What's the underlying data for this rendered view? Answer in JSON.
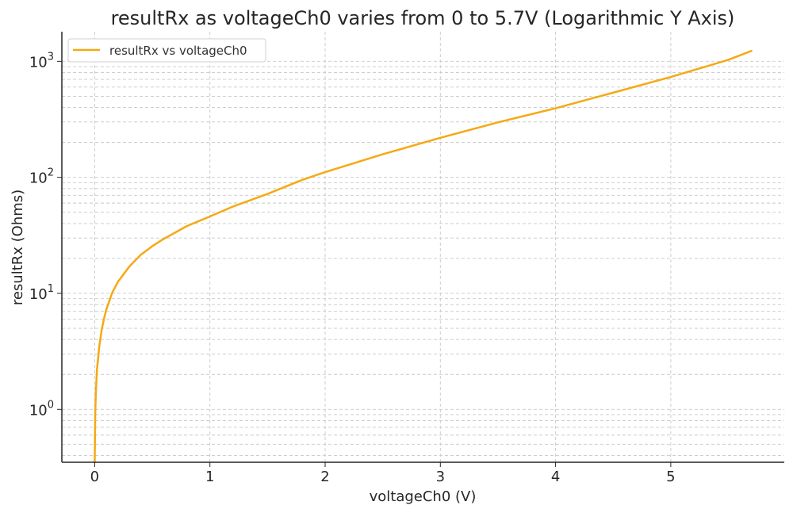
{
  "chart_data": {
    "type": "line",
    "title": "resultRx as voltageCh0 varies from 0 to 5.7V (Logarithmic Y Axis)",
    "xlabel": "voltageCh0 (V)",
    "ylabel": "resultRx (Ohms)",
    "x_ticks": [
      0,
      1,
      2,
      3,
      4,
      5
    ],
    "x_tick_labels": [
      "0",
      "1",
      "2",
      "3",
      "4",
      "5"
    ],
    "y_ticks": [
      {
        "base": "10",
        "exp": "0",
        "value": 1
      },
      {
        "base": "10",
        "exp": "1",
        "value": 10
      },
      {
        "base": "10",
        "exp": "2",
        "value": 100
      },
      {
        "base": "10",
        "exp": "3",
        "value": 1000
      }
    ],
    "xlim": [
      -0.285,
      5.985
    ],
    "ylim": [
      0.35,
      1800
    ],
    "yscale": "log",
    "grid": true,
    "legend_position": "top-left",
    "series": [
      {
        "name": "resultRx vs voltageCh0",
        "color": "#f5a914",
        "points": [
          [
            0.0,
            0.35
          ],
          [
            0.005,
            0.95
          ],
          [
            0.01,
            1.4
          ],
          [
            0.02,
            2.2
          ],
          [
            0.04,
            3.5
          ],
          [
            0.06,
            4.8
          ],
          [
            0.08,
            6.0
          ],
          [
            0.1,
            7.2
          ],
          [
            0.15,
            10.0
          ],
          [
            0.2,
            12.5
          ],
          [
            0.3,
            17.0
          ],
          [
            0.4,
            21.5
          ],
          [
            0.5,
            25.5
          ],
          [
            0.6,
            29.5
          ],
          [
            0.8,
            38.0
          ],
          [
            1.0,
            46.0
          ],
          [
            1.2,
            56.0
          ],
          [
            1.5,
            72.0
          ],
          [
            1.8,
            95.0
          ],
          [
            2.0,
            111.0
          ],
          [
            2.5,
            158.0
          ],
          [
            3.0,
            219.0
          ],
          [
            3.5,
            298.0
          ],
          [
            4.0,
            394.0
          ],
          [
            4.5,
            537.0
          ],
          [
            5.0,
            733.0
          ],
          [
            5.5,
            1030.0
          ],
          [
            5.7,
            1230.0
          ]
        ]
      }
    ]
  }
}
